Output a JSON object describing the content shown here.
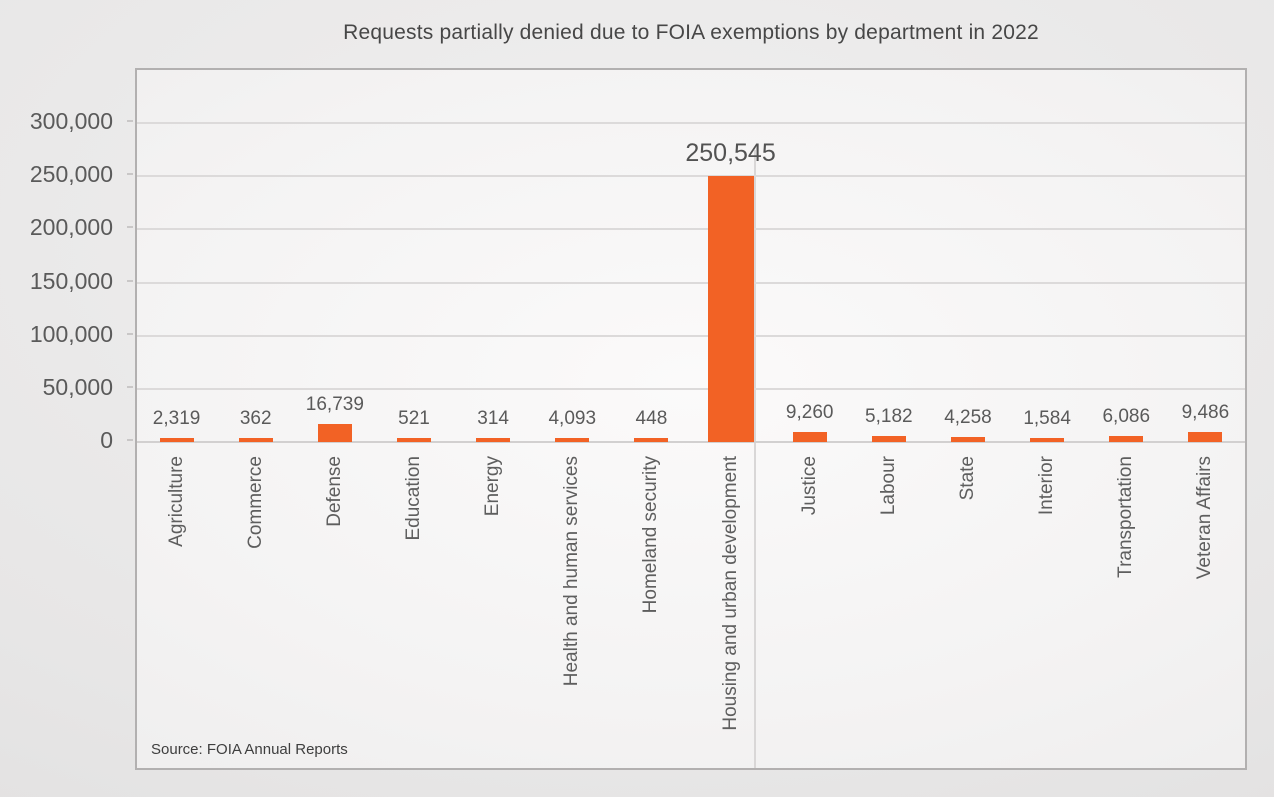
{
  "chart_data": {
    "type": "bar",
    "title": "Requests partially denied due to FOIA exemptions by department in 2022",
    "source": "Source: FOIA Annual Reports",
    "categories": [
      "Agriculture",
      "Commerce",
      "Defense",
      "Education",
      "Energy",
      "Health and human services",
      "Homeland security",
      "Housing and urban development",
      "Justice",
      "Labour",
      "State",
      "Interior",
      "Transportation",
      "Veteran Affairs"
    ],
    "values": [
      2319,
      362,
      16739,
      521,
      314,
      4093,
      448,
      250545,
      9260,
      5182,
      4258,
      1584,
      6086,
      9486
    ],
    "value_labels": [
      "2,319",
      "362",
      "16,739",
      "521",
      "314",
      "4,093",
      "448",
      "250,545",
      "9,260",
      "5,182",
      "4,258",
      "1,584",
      "6,086",
      "9,486"
    ],
    "bar_color": "#F26225",
    "highlight_index": 7,
    "ylim": [
      0,
      350000
    ],
    "yticks": [
      0,
      50000,
      100000,
      150000,
      200000,
      250000,
      300000
    ],
    "ytick_labels": [
      "0",
      "50,000",
      "100,000",
      "150,000",
      "200,000",
      "250,000",
      "300,000"
    ],
    "xlabel": "",
    "ylabel": "",
    "grid": "horizontal",
    "legend": "none"
  }
}
